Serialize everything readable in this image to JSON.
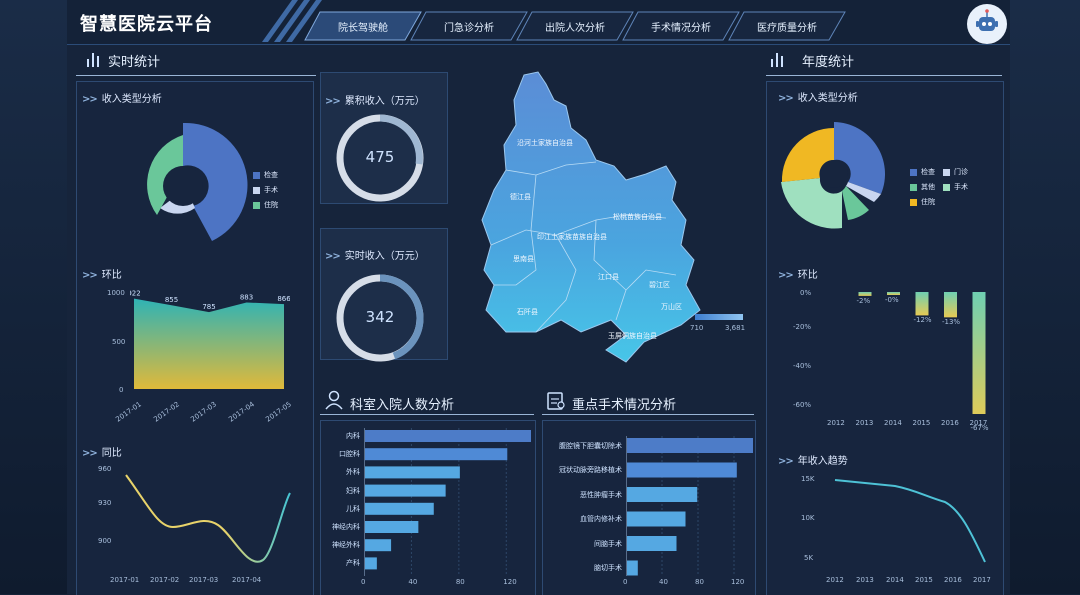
{
  "header": {
    "title": "智慧医院云平台",
    "tabs": [
      {
        "label": "院长驾驶舱",
        "active": true
      },
      {
        "label": "门急诊分析",
        "active": false
      },
      {
        "label": "出院人次分析",
        "active": false
      },
      {
        "label": "手术情况分析",
        "active": false
      },
      {
        "label": "医疗质量分析",
        "active": false
      }
    ],
    "avatar_icon": "robot-icon"
  },
  "left": {
    "section_title": "实时统计",
    "income_type": {
      "title": "收入类型分析",
      "legend": [
        "检查",
        "手术",
        "住院"
      ],
      "colors": [
        "#4d74c4",
        "#c9d6f0",
        "#6ac79a"
      ],
      "values": [
        55,
        10,
        35
      ]
    },
    "mom": {
      "title": "环比",
      "y_ticks": [
        "1000",
        "500",
        "0"
      ],
      "categories": [
        "2017-01",
        "2017-02",
        "2017-03",
        "2017-04",
        "2017-05"
      ],
      "values": [
        922,
        855,
        785,
        883,
        866
      ]
    },
    "yoy": {
      "title": "同比",
      "y_ticks": [
        "960",
        "930",
        "900"
      ],
      "categories": [
        "2017-01",
        "2017-02",
        "2017-03",
        "2017-04"
      ]
    }
  },
  "center": {
    "cumulative": {
      "title": "累积收入（万元）",
      "value": "475"
    },
    "realtime": {
      "title": "实时收入（万元）",
      "value": "342"
    },
    "map": {
      "labels": [
        "沿河土家族自治县",
        "德江县",
        "松桃苗族自治县",
        "印江土家族苗族自治县",
        "思南县",
        "江口县",
        "碧江区",
        "石阡县",
        "万山区",
        "玉屏侗族自治县"
      ],
      "range": [
        "710",
        "3,681"
      ]
    },
    "dept": {
      "title": "科室入院人数分析",
      "categories": [
        "内科",
        "口腔科",
        "外科",
        "妇科",
        "儿科",
        "神经内科",
        "神经外科",
        "产科"
      ],
      "values": [
        140,
        120,
        80,
        68,
        58,
        45,
        22,
        10
      ],
      "x_ticks": [
        "0",
        "40",
        "80",
        "120"
      ]
    },
    "surgery": {
      "title": "重点手术情况分析",
      "categories": [
        "腹腔镜下胆囊切除术",
        "冠状动脉旁路移植术",
        "恶性肿瘤手术",
        "血管内修补术",
        "间脑手术",
        "脑切手术"
      ],
      "values": [
        140,
        122,
        78,
        65,
        55,
        12
      ],
      "x_ticks": [
        "0",
        "40",
        "80",
        "120"
      ]
    }
  },
  "right": {
    "section_title": "年度统计",
    "income_type": {
      "title": "收入类型分析",
      "legend": [
        "检查",
        "门诊",
        "其他",
        "手术",
        "住院"
      ],
      "colors": [
        "#4d74c4",
        "#c9d6f0",
        "#6ac79a",
        "#9fe0bf",
        "#f0b823"
      ],
      "values": [
        35,
        2,
        10,
        30,
        23
      ]
    },
    "mom": {
      "title": "环比",
      "y_ticks": [
        "0%",
        "-20%",
        "-40%",
        "-60%"
      ],
      "categories": [
        "2012",
        "2013",
        "2014",
        "2015",
        "2016",
        "2017"
      ],
      "values": [
        0,
        -2,
        0,
        -12,
        -13,
        -67
      ],
      "value_labels": [
        "",
        "-2%",
        "-0%",
        "-12%",
        "-13%",
        "-67%"
      ]
    },
    "trend": {
      "title": "年收入趋势",
      "y_ticks": [
        "15K",
        "10K",
        "5K"
      ],
      "categories": [
        "2012",
        "2013",
        "2014",
        "2015",
        "2016",
        "2017"
      ]
    }
  }
}
